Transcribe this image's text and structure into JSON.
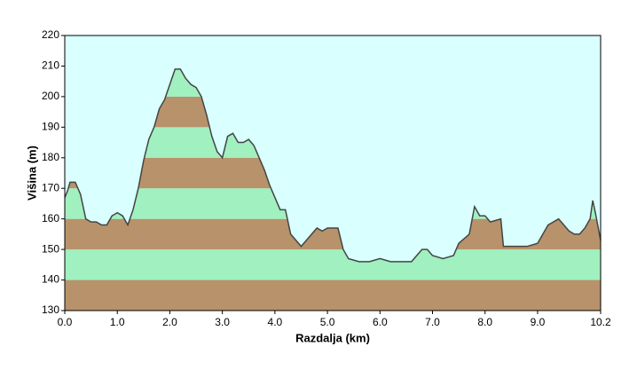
{
  "chart_data": {
    "type": "area",
    "x_label": "Razdalja  (km)",
    "y_label": "Višina (m)",
    "x": [
      0.0,
      0.05,
      0.1,
      0.2,
      0.3,
      0.4,
      0.5,
      0.6,
      0.7,
      0.8,
      0.9,
      1.0,
      1.1,
      1.2,
      1.3,
      1.4,
      1.5,
      1.6,
      1.7,
      1.8,
      1.9,
      2.0,
      2.1,
      2.2,
      2.3,
      2.4,
      2.5,
      2.6,
      2.7,
      2.8,
      2.9,
      3.0,
      3.1,
      3.2,
      3.3,
      3.4,
      3.5,
      3.6,
      3.7,
      3.8,
      3.9,
      4.0,
      4.1,
      4.2,
      4.3,
      4.4,
      4.5,
      4.6,
      4.7,
      4.8,
      4.9,
      5.0,
      5.2,
      5.3,
      5.4,
      5.6,
      5.8,
      6.0,
      6.2,
      6.4,
      6.6,
      6.8,
      6.9,
      7.0,
      7.2,
      7.4,
      7.5,
      7.7,
      7.8,
      7.9,
      8.0,
      8.1,
      8.3,
      8.35,
      8.6,
      8.8,
      9.0,
      9.2,
      9.4,
      9.6,
      9.7,
      9.8,
      9.9,
      10.0,
      10.05,
      10.1,
      10.2
    ],
    "values": [
      167,
      169,
      172,
      172,
      168,
      160,
      159,
      159,
      158,
      158,
      161,
      162,
      161,
      158,
      163,
      170,
      179,
      186,
      190,
      196,
      199,
      204,
      209,
      209,
      206,
      204,
      203,
      200,
      194,
      187,
      182,
      180,
      187,
      188,
      185,
      185,
      186,
      184,
      180,
      176,
      171,
      167,
      163,
      163,
      155,
      153,
      151,
      153,
      155,
      157,
      156,
      157,
      157,
      150,
      147,
      146,
      146,
      147,
      146,
      146,
      146,
      150,
      150,
      148,
      147,
      148,
      152,
      155,
      164,
      161,
      161,
      159,
      160,
      151,
      151,
      151,
      152,
      158,
      160,
      156,
      155,
      155,
      157,
      160,
      166,
      162,
      153
    ],
    "xlim": [
      0,
      10.2
    ],
    "ylim": [
      130,
      220
    ],
    "xticks": [
      {
        "value": 0,
        "label": "0.0"
      },
      {
        "value": 1,
        "label": "1.0"
      },
      {
        "value": 2,
        "label": "2.0"
      },
      {
        "value": 3,
        "label": "3.0"
      },
      {
        "value": 4,
        "label": "4.0"
      },
      {
        "value": 5,
        "label": "5.0"
      },
      {
        "value": 6,
        "label": "6.0"
      },
      {
        "value": 7,
        "label": "7.0"
      },
      {
        "value": 8,
        "label": "8.0"
      },
      {
        "value": 9,
        "label": "9.0"
      },
      10.2
    ],
    "yticks": [
      130,
      140,
      150,
      160,
      170,
      180,
      190,
      200,
      210,
      220
    ],
    "line_color": "#444444",
    "background": "#d9ffff",
    "band_colors": [
      "#b8926a",
      "#a0f0c0"
    ]
  }
}
